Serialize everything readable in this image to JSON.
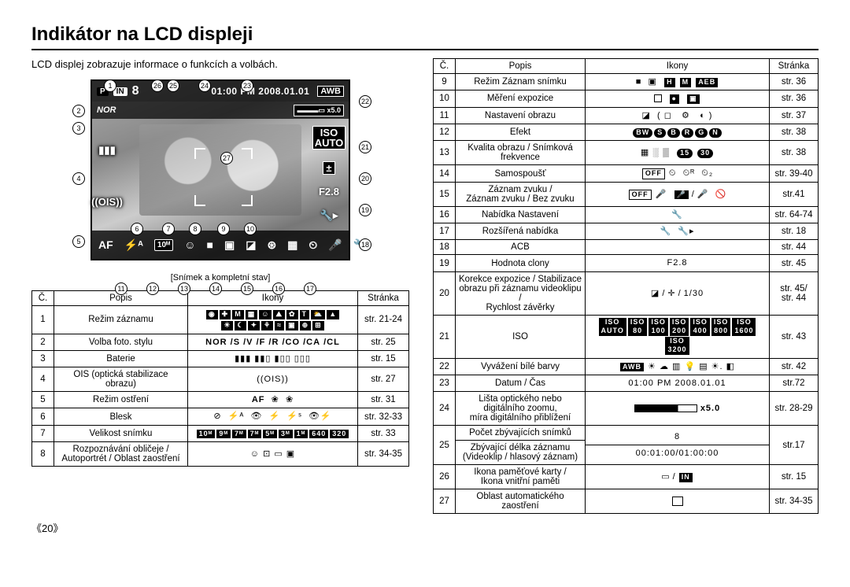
{
  "page": {
    "title": "Indikátor na LCD displeji",
    "intro": "LCD displej zobrazuje informace o funkcích a volbách.",
    "caption": "[Snímek a kompletní stav]",
    "page_number": "《20》"
  },
  "lcd": {
    "mode_icon": "P",
    "mem_icon": "IN",
    "count": "8",
    "time": "01:00 PM",
    "date": "2008.01.01",
    "awb": "AWB",
    "style": "NOR",
    "zoom_label": "x5.0",
    "iso": "ISO\nAUTO",
    "expo": "±",
    "aperture": "F2.8",
    "af": "AF",
    "flash": "⚡ᴬ",
    "size": "10ᴹ",
    "battery": "▮▮▮",
    "ois": "((OIS))"
  },
  "callouts": [
    "1",
    "2",
    "3",
    "4",
    "5",
    "6",
    "7",
    "8",
    "9",
    "10",
    "11",
    "12",
    "13",
    "14",
    "15",
    "16",
    "17",
    "18",
    "19",
    "20",
    "21",
    "22",
    "23",
    "24",
    "25",
    "26",
    "27"
  ],
  "headers": {
    "num": "Č.",
    "desc": "Popis",
    "icons": "Ikony",
    "page": "Stránka"
  },
  "table_left": [
    {
      "n": "1",
      "d": "Režim záznamu",
      "i": "<span class='box'>◉</span><span class='box'>✚</span><span class='box'>M</span><span class='box'>▦</span><span class='box'>☺</span><span class='box'>⛰</span><span class='box'>✿</span><span class='box'>T</span><span class='box'>⛅</span><span class='box'>▲</span><br><span class='box'>☀</span><span class='box'>☾</span><span class='box'>✦</span><span class='box'>⚘</span><span class='box'>≈</span><span class='box'>▣</span><span class='box'>⊕</span><span class='box'>⊞</span>",
      "p": "str. 21-24"
    },
    {
      "n": "2",
      "d": "Volba foto. stylu",
      "i": "<b>NOR</b> <b>/S</b> <b>/V</b> <b>/F</b> <b>/R</b> <b>/CO</b> <b>/CA</b> <b>/CL</b>",
      "p": "str. 25"
    },
    {
      "n": "3",
      "d": "Baterie",
      "i": "▮▮▮ ▮▮▯ ▮▯▯ ▯▯▯",
      "p": "str. 15"
    },
    {
      "n": "4",
      "d": "OIS (optická stabilizace obrazu)",
      "i": "((OIS))",
      "p": "str. 27"
    },
    {
      "n": "5",
      "d": "Režim ostření",
      "i": "<b>AF</b>&nbsp; ❀&nbsp; ❀",
      "p": "str. 31"
    },
    {
      "n": "6",
      "d": "Blesk",
      "i": "⊘&nbsp; ⚡ᴬ&nbsp; 👁&nbsp; ⚡&nbsp; ⚡ˢ&nbsp; 👁⚡",
      "p": "str. 32-33"
    },
    {
      "n": "7",
      "d": "Velikost snímku",
      "i": "<span class='box'>10ᴹ</span><span class='box'>9ᴹ</span><span class='box'>7ᴹ</span><span class='box'>7ᴹ</span><span class='box'>5ᴹ</span><span class='box'>3ᴹ</span><span class='box'>1ᴹ</span><span class='box'>640</span><span class='box'>320</span>",
      "p": "str. 33"
    },
    {
      "n": "8",
      "d": "Rozpoznávání obličeje /<br>Autoportrét / Oblast zaostření",
      "i": "☺ ⊡ ▭ ▣",
      "p": "str. 34-35"
    }
  ],
  "table_right": [
    {
      "n": "9",
      "d": "Režim Záznam snímku",
      "i": "■ &nbsp;▣ &nbsp;<span class='box'>H</span> <span class='box'>M</span> <span class='box'>AEB</span>",
      "p": "str. 36"
    },
    {
      "n": "10",
      "d": "Měření expozice",
      "i": "<span class='sq'></span> &nbsp;<span class='box'>●</span> &nbsp;<span class='box'>▣</span>",
      "p": "str. 36"
    },
    {
      "n": "11",
      "d": "Nastavení obrazu",
      "i": "◪ &nbsp;( ◻ &nbsp; ⚙ &nbsp; ◐ )",
      "p": "str. 37"
    },
    {
      "n": "12",
      "d": "Efekt",
      "i": "<span class='pill'>BW</span><span class='pill'>S</span><span class='pill'>B</span><span class='pill'>R</span><span class='pill'>G</span><span class='pill'>N</span>",
      "p": "str. 38"
    },
    {
      "n": "13",
      "d": "Kvalita obrazu / Snímková frekvence",
      "i": "▦ ░ ▒ &nbsp;<span class='pill'>15</span> <span class='pill'>30</span>",
      "p": "str. 38"
    },
    {
      "n": "14",
      "d": "Samospoušť",
      "i": "<span class='box' style='background:#fff;color:#000;border:1px solid #000'>OFF</span> ⏲ &nbsp;⏲ᴿ &nbsp;⏲₂",
      "p": "str. 39-40"
    },
    {
      "n": "15",
      "d": "Záznam zvuku /<br>Záznam zvuku / Bez zvuku",
      "i": "<span class='box' style='background:#fff;color:#000;border:1px solid #000'>OFF</span> 🎤 &nbsp;<span class='box'>🎤</span><span class='slash'>/</span>🎤 &nbsp;🚫",
      "p": "str.41"
    },
    {
      "n": "16",
      "d": "Nabídka Nastavení",
      "i": "🔧",
      "p": "str. 64-74"
    },
    {
      "n": "17",
      "d": "Rozšířená nabídka",
      "i": "🔧 &nbsp;🔧▸",
      "p": "str. 18"
    },
    {
      "n": "18",
      "d": "ACB",
      "i": "",
      "p": "str. 44"
    },
    {
      "n": "19",
      "d": "Hodnota clony",
      "i": "F2.8",
      "p": "str. 45"
    },
    {
      "n": "20",
      "d": "Korekce expozice / Stabilizace<br>obrazu při záznamu videoklipu /<br>Rychlost závěrky",
      "i": "◪<span class='slash'>/</span>✛<span class='slash'>/</span>1/30",
      "p": "str. 45/<br>str. 44"
    },
    {
      "n": "21",
      "d": "ISO",
      "i": "<span class='box'>ISO<br>AUTO</span><span class='box'>ISO<br>80</span><span class='box'>ISO<br>100</span><span class='box'>ISO<br>200</span><span class='box'>ISO<br>400</span><span class='box'>ISO<br>800</span><span class='box'>ISO<br>1600</span><span class='box'>ISO<br>3200</span>",
      "p": "str. 43"
    },
    {
      "n": "22",
      "d": "Vyvážení bílé barvy",
      "i": "<span class='box'>AWB</span> ☀ ☁ ▥ 💡 ▤ ☀. ◧",
      "p": "str. 42"
    },
    {
      "n": "23",
      "d": "Datum / Čas",
      "i": "01:00 PM 2008.01.01",
      "p": "str.72"
    },
    {
      "n": "24",
      "d": "Lišta optického nebo<br>digitálního zoomu,<br>míra digitálního přiblížení",
      "i": "<span class='zoom-bar'></span> <b>x5.0</b>",
      "p": "str. 28-29"
    },
    {
      "n": "25",
      "d": "Počet zbývajících snímků<hr style='border:none;border-top:1px solid #000;margin:3px -4px'>Zbývající délka záznamu<br>(Videoklip / hlasový záznam)",
      "i": "8<hr style='border:none;border-top:1px solid #000;margin:3px -4px'>00:01:00/01:00:00",
      "p": "str.17"
    },
    {
      "n": "26",
      "d": "Ikona paměťové karty /<br>Ikona vnitřní paměti",
      "i": "▭<span class='slash'>/</span><span class='box'>IN</span>",
      "p": "str. 15"
    },
    {
      "n": "27",
      "d": "Oblast automatického zaostření",
      "i": "<span class='sq' style='width:14px;height:12px'></span>",
      "p": "str. 34-35"
    }
  ]
}
